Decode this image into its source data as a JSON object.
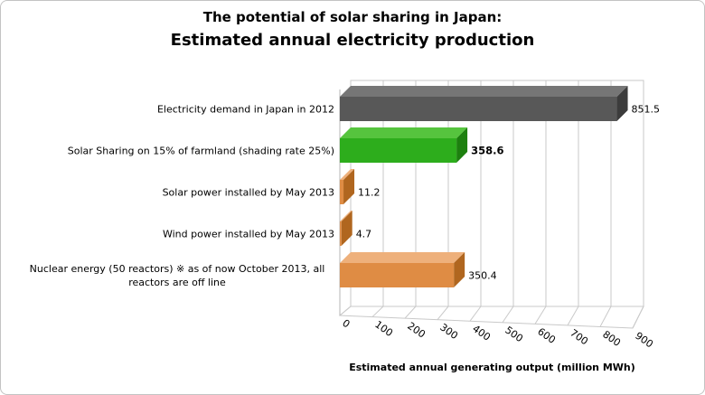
{
  "chart_data": {
    "type": "bar",
    "orientation": "horizontal",
    "projection": "3d",
    "title": "The potential of solar sharing in Japan: Estimated annual electricity production",
    "title_line1": "The potential of solar sharing in Japan:",
    "title_line2": "Estimated annual electricity production",
    "categories": [
      "Electricity demand in Japan in 2012",
      "Solar Sharing on 15% of farmland (shading rate 25%)",
      "Solar power installed by May 2013",
      "Wind power installed by May 2013",
      "Nuclear energy (50 reactors) ※ as of now October 2013, all reactors are off line"
    ],
    "values": [
      851.5,
      358.6,
      11.2,
      4.7,
      350.4
    ],
    "value_labels": [
      "851.5",
      "358.6",
      "11.2",
      "4.7",
      "350.4"
    ],
    "emphasized_value_index": 1,
    "bar_colors": [
      {
        "front": "#585858",
        "top": "#767676",
        "side": "#3c3c3c"
      },
      {
        "front": "#2dad1c",
        "top": "#56c43e",
        "side": "#1d800f"
      },
      {
        "front": "#df8c44",
        "top": "#eeb07b",
        "side": "#b0661f"
      },
      {
        "front": "#df8c44",
        "top": "#eeb07b",
        "side": "#b0661f"
      },
      {
        "front": "#df8c44",
        "top": "#eeb07b",
        "side": "#b0661f"
      }
    ],
    "xlabel": "Estimated annual generating output (million MWh)",
    "xlim": [
      0,
      900
    ],
    "xticks": [
      0,
      100,
      200,
      300,
      400,
      500,
      600,
      700,
      800,
      900
    ],
    "grid": true,
    "legend": false,
    "gridline_color": "#c9c9c9",
    "axis_line_color": "#b5b5b5",
    "text_color": "#000000",
    "background": "#ffffff"
  }
}
